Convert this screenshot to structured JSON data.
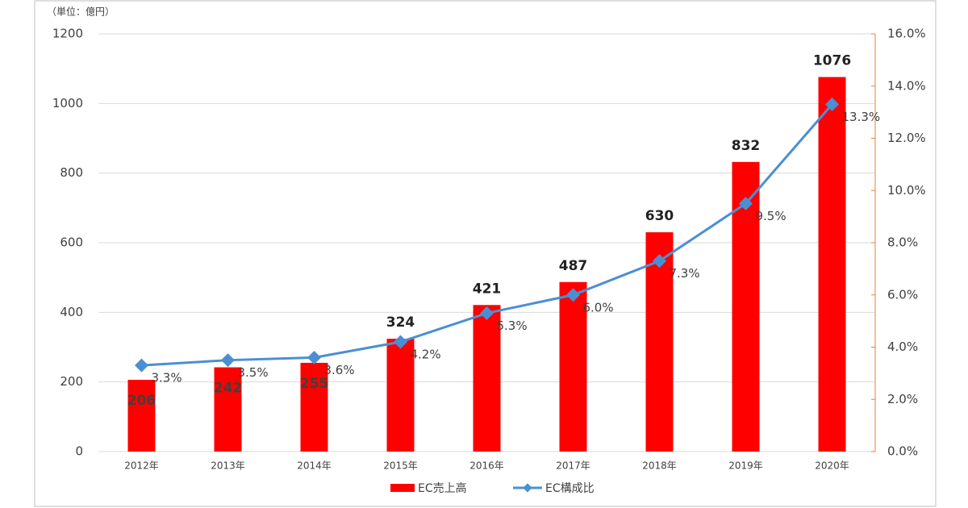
{
  "chart_data": {
    "type": "bar_line",
    "unit_label": "（単位：億円）",
    "categories": [
      "2012年",
      "2013年",
      "2014年",
      "2015年",
      "2016年",
      "2017年",
      "2018年",
      "2019年",
      "2020年"
    ],
    "series": [
      {
        "name": "EC売上高",
        "color": "#ff0000",
        "values": [
          206,
          242,
          255,
          324,
          421,
          487,
          630,
          832,
          1076
        ]
      },
      {
        "name": "EC構成比",
        "color": "#4a8fd4",
        "axis": "y2",
        "values": [
          3.3,
          3.5,
          3.6,
          4.2,
          5.3,
          6.0,
          7.3,
          9.5,
          13.3
        ],
        "value_labels": [
          "3.3%",
          "3.5%",
          "3.6%",
          "4.2%",
          "5.3%",
          "6.0%",
          "7.3%",
          "9.5%",
          "13.3%"
        ]
      }
    ],
    "ylim": [
      0,
      1200
    ],
    "yticks": [
      0,
      200,
      400,
      600,
      800,
      1000,
      1200
    ],
    "y2lim": [
      0,
      16
    ],
    "y2ticks": [
      {
        "value": 0,
        "label": "0.0%"
      },
      {
        "value": 2,
        "label": "2.0%"
      },
      {
        "value": 4,
        "label": "4.0%"
      },
      {
        "value": 6,
        "label": "6.0%"
      },
      {
        "value": 8,
        "label": "8.0%"
      },
      {
        "value": 10,
        "label": "10.0%"
      },
      {
        "value": 12,
        "label": "12.0%"
      },
      {
        "value": 14,
        "label": "14.0%"
      },
      {
        "value": 16,
        "label": "16.0%"
      }
    ],
    "y2_axis_color": "#ed7d31",
    "grid": true
  }
}
